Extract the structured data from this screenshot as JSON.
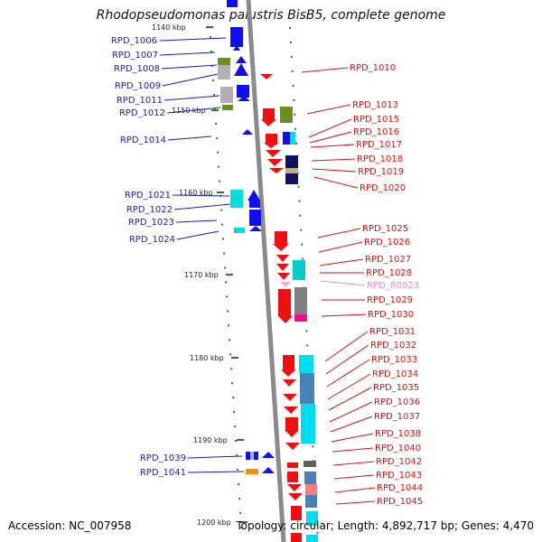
{
  "title": "Rhodopseudomonas palustris BisB5, complete genome",
  "footer": {
    "accession": "Accession: NC_007958",
    "summary": "Topology: circular; Length: 4,892,717 bp; Genes: 4,470"
  },
  "colors": {
    "backbone": "#8a8a8a",
    "tick": "#2a7a18",
    "left_label": "#1a1acc",
    "right_label": "#dd1010",
    "rna_label": "#ee88cc"
  },
  "scale": {
    "start_label": "1140 kbp",
    "ticks": [
      "1150 kbp",
      "1160 kbp",
      "1170 kbp",
      "1180 kbp",
      "1190 kbp",
      "1200 kbp"
    ]
  },
  "left_labels": [
    "RPD_1006",
    "RPD_1007",
    "RPD_1008",
    "RPD_1009",
    "RPD_1011",
    "RPD_1012",
    "RPD_1014",
    "RPD_1021",
    "RPD_1022",
    "RPD_1023",
    "RPD_1024",
    "RPD_1039",
    "RPD_1041"
  ],
  "right_labels": [
    "RPD_1010",
    "RPD_1013",
    "RPD_1015",
    "RPD_1016",
    "RPD_1017",
    "RPD_1018",
    "RPD_1019",
    "RPD_1020",
    "RPD_1025",
    "RPD_1026",
    "RPD_1027",
    "RPD_1028",
    "RPD_R0023",
    "RPD_1029",
    "RPD_1030",
    "RPD_1031",
    "RPD_1032",
    "RPD_1033",
    "RPD_1034",
    "RPD_1035",
    "RPD_1036",
    "RPD_1037",
    "RPD_1038",
    "RPD_1040",
    "RPD_1042",
    "RPD_1043",
    "RPD_1044",
    "RPD_1045"
  ]
}
